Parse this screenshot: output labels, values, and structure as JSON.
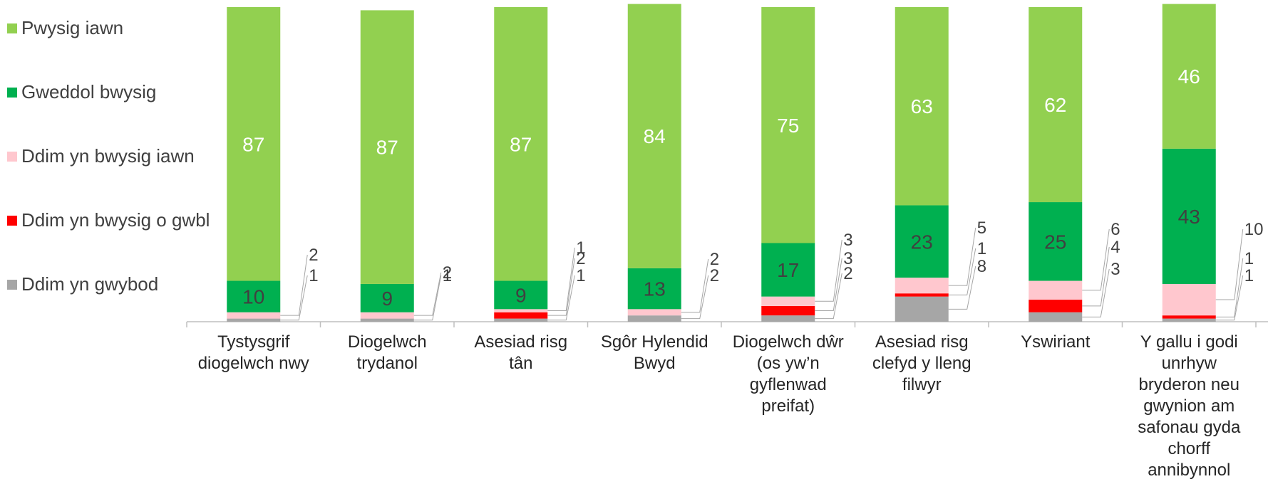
{
  "chart_data": {
    "type": "bar",
    "stacked": true,
    "legend_position": "left",
    "ylim": [
      0,
      100
    ],
    "categories": [
      [
        "Tystysgrif",
        "diogelwch nwy"
      ],
      [
        "Diogelwch",
        "trydanol"
      ],
      [
        "Asesiad risg",
        "tân"
      ],
      [
        "Sgôr Hylendid",
        "Bwyd"
      ],
      [
        "Diogelwch dŵr",
        "(os yw’n",
        "gyflenwad",
        "preifat)"
      ],
      [
        "Asesiad risg",
        "clefyd y lleng",
        "filwyr"
      ],
      [
        "Yswiriant"
      ],
      [
        "Y gallu i godi",
        "unrhyw",
        "bryderon neu",
        "gwynion am",
        "safonau gyda",
        "chorff",
        "annibynnol"
      ]
    ],
    "series": [
      {
        "name": "Ddim yn gwybod",
        "color": "#a6a6a6",
        "values": [
          1,
          1,
          1,
          2,
          2,
          8,
          3,
          1
        ]
      },
      {
        "name": "Ddim yn bwysig o gwbl",
        "color": "#ff0000",
        "values": [
          0,
          0,
          2,
          0,
          3,
          1,
          4,
          1
        ]
      },
      {
        "name": "Ddim yn bwysig iawn",
        "color": "#ffc7ce",
        "values": [
          2,
          2,
          1,
          2,
          3,
          5,
          6,
          10
        ]
      },
      {
        "name": "Gweddol bwysig",
        "color": "#00b050",
        "values": [
          10,
          9,
          9,
          13,
          17,
          23,
          25,
          43
        ]
      },
      {
        "name": "Pwysig iawn",
        "color": "#92d050",
        "values": [
          87,
          87,
          87,
          84,
          75,
          63,
          62,
          46
        ]
      }
    ],
    "legend": [
      "Pwysig iawn",
      "Gweddol bwysig",
      "Ddim yn bwysig iawn",
      "Ddim yn bwysig o gwbl",
      "Ddim yn gwybod"
    ]
  }
}
